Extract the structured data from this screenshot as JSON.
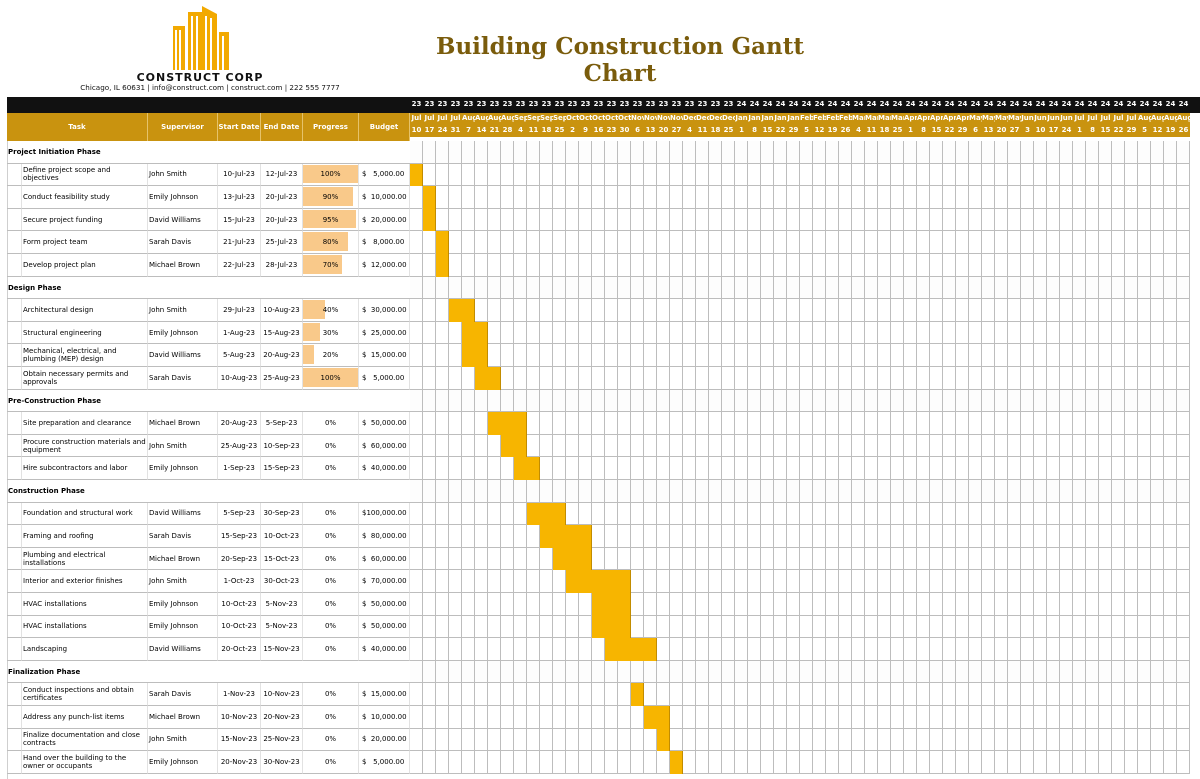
{
  "company": {
    "name": "CONSTRUCT CORP",
    "contact": "Chicago, IL 60631 | info@construct.com | construct.com | 222 555 7777"
  },
  "title": "Building Construction Gantt Chart",
  "columns": {
    "task": "Task",
    "supervisor": "Supervisor",
    "start": "Start Date",
    "end": "End Date",
    "progress": "Progress",
    "budget": "Budget"
  },
  "colors": {
    "accent": "#c9930f",
    "bar": "#f7b500",
    "progress_fill": "#f9c98a",
    "title": "#7a5c0c"
  },
  "timeline": {
    "weeks": [
      {
        "yr": "23",
        "mo": "Jul",
        "day": "10"
      },
      {
        "yr": "23",
        "mo": "Jul",
        "day": "17"
      },
      {
        "yr": "23",
        "mo": "Jul",
        "day": "24"
      },
      {
        "yr": "23",
        "mo": "Jul",
        "day": "31"
      },
      {
        "yr": "23",
        "mo": "Aug",
        "day": "7"
      },
      {
        "yr": "23",
        "mo": "Aug",
        "day": "14"
      },
      {
        "yr": "23",
        "mo": "Aug",
        "day": "21"
      },
      {
        "yr": "23",
        "mo": "Aug",
        "day": "28"
      },
      {
        "yr": "23",
        "mo": "Sep",
        "day": "4"
      },
      {
        "yr": "23",
        "mo": "Sep",
        "day": "11"
      },
      {
        "yr": "23",
        "mo": "Sep",
        "day": "18"
      },
      {
        "yr": "23",
        "mo": "Sep",
        "day": "25"
      },
      {
        "yr": "23",
        "mo": "Oct",
        "day": "2"
      },
      {
        "yr": "23",
        "mo": "Oct",
        "day": "9"
      },
      {
        "yr": "23",
        "mo": "Oct",
        "day": "16"
      },
      {
        "yr": "23",
        "mo": "Oct",
        "day": "23"
      },
      {
        "yr": "23",
        "mo": "Oct",
        "day": "30"
      },
      {
        "yr": "23",
        "mo": "Nov",
        "day": "6"
      },
      {
        "yr": "23",
        "mo": "Nov",
        "day": "13"
      },
      {
        "yr": "23",
        "mo": "Nov",
        "day": "20"
      },
      {
        "yr": "23",
        "mo": "Nov",
        "day": "27"
      },
      {
        "yr": "23",
        "mo": "Dec",
        "day": "4"
      },
      {
        "yr": "23",
        "mo": "Dec",
        "day": "11"
      },
      {
        "yr": "23",
        "mo": "Dec",
        "day": "18"
      },
      {
        "yr": "23",
        "mo": "Dec",
        "day": "25"
      },
      {
        "yr": "24",
        "mo": "Jan",
        "day": "1"
      },
      {
        "yr": "24",
        "mo": "Jan",
        "day": "8"
      },
      {
        "yr": "24",
        "mo": "Jan",
        "day": "15"
      },
      {
        "yr": "24",
        "mo": "Jan",
        "day": "22"
      },
      {
        "yr": "24",
        "mo": "Jan",
        "day": "29"
      },
      {
        "yr": "24",
        "mo": "Feb",
        "day": "5"
      },
      {
        "yr": "24",
        "mo": "Feb",
        "day": "12"
      },
      {
        "yr": "24",
        "mo": "Feb",
        "day": "19"
      },
      {
        "yr": "24",
        "mo": "Feb",
        "day": "26"
      },
      {
        "yr": "24",
        "mo": "Mar",
        "day": "4"
      },
      {
        "yr": "24",
        "mo": "Mar",
        "day": "11"
      },
      {
        "yr": "24",
        "mo": "Mar",
        "day": "18"
      },
      {
        "yr": "24",
        "mo": "Mar",
        "day": "25"
      },
      {
        "yr": "24",
        "mo": "Apr",
        "day": "1"
      },
      {
        "yr": "24",
        "mo": "Apr",
        "day": "8"
      },
      {
        "yr": "24",
        "mo": "Apr",
        "day": "15"
      },
      {
        "yr": "24",
        "mo": "Apr",
        "day": "22"
      },
      {
        "yr": "24",
        "mo": "Apr",
        "day": "29"
      },
      {
        "yr": "24",
        "mo": "May",
        "day": "6"
      },
      {
        "yr": "24",
        "mo": "May",
        "day": "13"
      },
      {
        "yr": "24",
        "mo": "May",
        "day": "20"
      },
      {
        "yr": "24",
        "mo": "May",
        "day": "27"
      },
      {
        "yr": "24",
        "mo": "Jun",
        "day": "3"
      },
      {
        "yr": "24",
        "mo": "Jun",
        "day": "10"
      },
      {
        "yr": "24",
        "mo": "Jun",
        "day": "17"
      },
      {
        "yr": "24",
        "mo": "Jun",
        "day": "24"
      },
      {
        "yr": "24",
        "mo": "Jul",
        "day": "1"
      },
      {
        "yr": "24",
        "mo": "Jul",
        "day": "8"
      },
      {
        "yr": "24",
        "mo": "Jul",
        "day": "15"
      },
      {
        "yr": "24",
        "mo": "Jul",
        "day": "22"
      },
      {
        "yr": "24",
        "mo": "Jul",
        "day": "29"
      },
      {
        "yr": "24",
        "mo": "Aug",
        "day": "5"
      },
      {
        "yr": "24",
        "mo": "Aug",
        "day": "12"
      },
      {
        "yr": "24",
        "mo": "Aug",
        "day": "19"
      },
      {
        "yr": "24",
        "mo": "Aug",
        "day": "26"
      }
    ]
  },
  "phases": [
    {
      "name": "Project Initiation Phase",
      "tasks": [
        {
          "task": "Define project scope and objectives",
          "supervisor": "John Smith",
          "start": "10-Jul-23",
          "end": "12-Jul-23",
          "progress": "100%",
          "progress_frac": 1.0,
          "budget": "$   5,000.00",
          "w0": 0,
          "w1": 0
        },
        {
          "task": "Conduct feasibility study",
          "supervisor": "Emily Johnson",
          "start": "13-Jul-23",
          "end": "20-Jul-23",
          "progress": "90%",
          "progress_frac": 0.9,
          "budget": "$  10,000.00",
          "w0": 1,
          "w1": 1
        },
        {
          "task": "Secure project funding",
          "supervisor": "David Williams",
          "start": "15-Jul-23",
          "end": "20-Jul-23",
          "progress": "95%",
          "progress_frac": 0.95,
          "budget": "$  20,000.00",
          "w0": 1,
          "w1": 1
        },
        {
          "task": "Form project team",
          "supervisor": "Sarah Davis",
          "start": "21-Jul-23",
          "end": "25-Jul-23",
          "progress": "80%",
          "progress_frac": 0.8,
          "budget": "$   8,000.00",
          "w0": 2,
          "w1": 2
        },
        {
          "task": "Develop project plan",
          "supervisor": "Michael Brown",
          "start": "22-Jul-23",
          "end": "28-Jul-23",
          "progress": "70%",
          "progress_frac": 0.7,
          "budget": "$  12,000.00",
          "w0": 2,
          "w1": 2
        }
      ]
    },
    {
      "name": "Design Phase",
      "tasks": [
        {
          "task": "Architectural design",
          "supervisor": "John Smith",
          "start": "29-Jul-23",
          "end": "10-Aug-23",
          "progress": "40%",
          "progress_frac": 0.4,
          "budget": "$  30,000.00",
          "w0": 3,
          "w1": 4
        },
        {
          "task": "Structural engineering",
          "supervisor": "Emily Johnson",
          "start": "1-Aug-23",
          "end": "15-Aug-23",
          "progress": "30%",
          "progress_frac": 0.3,
          "budget": "$  25,000.00",
          "w0": 4,
          "w1": 5
        },
        {
          "task": "Mechanical, electrical, and plumbing (MEP) design",
          "supervisor": "David Williams",
          "start": "5-Aug-23",
          "end": "20-Aug-23",
          "progress": "20%",
          "progress_frac": 0.2,
          "budget": "$  15,000.00",
          "w0": 4,
          "w1": 5
        },
        {
          "task": "Obtain necessary permits and approvals",
          "supervisor": "Sarah Davis",
          "start": "10-Aug-23",
          "end": "25-Aug-23",
          "progress": "100%",
          "progress_frac": 1.0,
          "budget": "$   5,000.00",
          "w0": 5,
          "w1": 6
        }
      ]
    },
    {
      "name": "Pre-Construction Phase",
      "tasks": [
        {
          "task": "Site preparation and clearance",
          "supervisor": "Michael Brown",
          "start": "20-Aug-23",
          "end": "5-Sep-23",
          "progress": "0%",
          "progress_frac": 0,
          "budget": "$  50,000.00",
          "w0": 6,
          "w1": 8
        },
        {
          "task": "Procure construction materials and equipment",
          "supervisor": "John Smith",
          "start": "25-Aug-23",
          "end": "10-Sep-23",
          "progress": "0%",
          "progress_frac": 0,
          "budget": "$  60,000.00",
          "w0": 7,
          "w1": 8
        },
        {
          "task": "Hire subcontractors and labor",
          "supervisor": "Emily Johnson",
          "start": "1-Sep-23",
          "end": "15-Sep-23",
          "progress": "0%",
          "progress_frac": 0,
          "budget": "$  40,000.00",
          "w0": 8,
          "w1": 9
        }
      ]
    },
    {
      "name": "Construction Phase",
      "tasks": [
        {
          "task": "Foundation and structural work",
          "supervisor": "David Williams",
          "start": "5-Sep-23",
          "end": "30-Sep-23",
          "progress": "0%",
          "progress_frac": 0,
          "budget": "$100,000.00",
          "w0": 9,
          "w1": 11
        },
        {
          "task": "Framing and roofing",
          "supervisor": "Sarah Davis",
          "start": "15-Sep-23",
          "end": "10-Oct-23",
          "progress": "0%",
          "progress_frac": 0,
          "budget": "$  80,000.00",
          "w0": 10,
          "w1": 13
        },
        {
          "task": "Plumbing and electrical installations",
          "supervisor": "Michael Brown",
          "start": "20-Sep-23",
          "end": "15-Oct-23",
          "progress": "0%",
          "progress_frac": 0,
          "budget": "$  60,000.00",
          "w0": 11,
          "w1": 13
        },
        {
          "task": "Interior and exterior finishes",
          "supervisor": "John Smith",
          "start": "1-Oct-23",
          "end": "30-Oct-23",
          "progress": "0%",
          "progress_frac": 0,
          "budget": "$  70,000.00",
          "w0": 12,
          "w1": 16
        },
        {
          "task": "HVAC installations",
          "supervisor": "Emily Johnson",
          "start": "10-Oct-23",
          "end": "5-Nov-23",
          "progress": "0%",
          "progress_frac": 0,
          "budget": "$  50,000.00",
          "w0": 14,
          "w1": 16
        },
        {
          "task": "HVAC installations",
          "supervisor": "Emily Johnson",
          "start": "10-Oct-23",
          "end": "5-Nov-23",
          "progress": "0%",
          "progress_frac": 0,
          "budget": "$  50,000.00",
          "w0": 14,
          "w1": 16
        },
        {
          "task": "Landscaping",
          "supervisor": "David Williams",
          "start": "20-Oct-23",
          "end": "15-Nov-23",
          "progress": "0%",
          "progress_frac": 0,
          "budget": "$  40,000.00",
          "w0": 15,
          "w1": 18
        }
      ]
    },
    {
      "name": "Finalization Phase",
      "tasks": [
        {
          "task": "Conduct inspections and obtain certificates",
          "supervisor": "Sarah Davis",
          "start": "1-Nov-23",
          "end": "10-Nov-23",
          "progress": "0%",
          "progress_frac": 0,
          "budget": "$  15,000.00",
          "w0": 17,
          "w1": 17
        },
        {
          "task": "Address any punch-list items",
          "supervisor": "Michael Brown",
          "start": "10-Nov-23",
          "end": "20-Nov-23",
          "progress": "0%",
          "progress_frac": 0,
          "budget": "$  10,000.00",
          "w0": 18,
          "w1": 19
        },
        {
          "task": "Finalize documentation and close contracts",
          "supervisor": "John Smith",
          "start": "15-Nov-23",
          "end": "25-Nov-23",
          "progress": "0%",
          "progress_frac": 0,
          "budget": "$  20,000.00",
          "w0": 19,
          "w1": 19
        },
        {
          "task": "Hand over the building to the owner or occupants",
          "supervisor": "Emily Johnson",
          "start": "20-Nov-23",
          "end": "30-Nov-23",
          "progress": "0%",
          "progress_frac": 0,
          "budget": "$   5,000.00",
          "w0": 20,
          "w1": 20
        }
      ]
    }
  ]
}
